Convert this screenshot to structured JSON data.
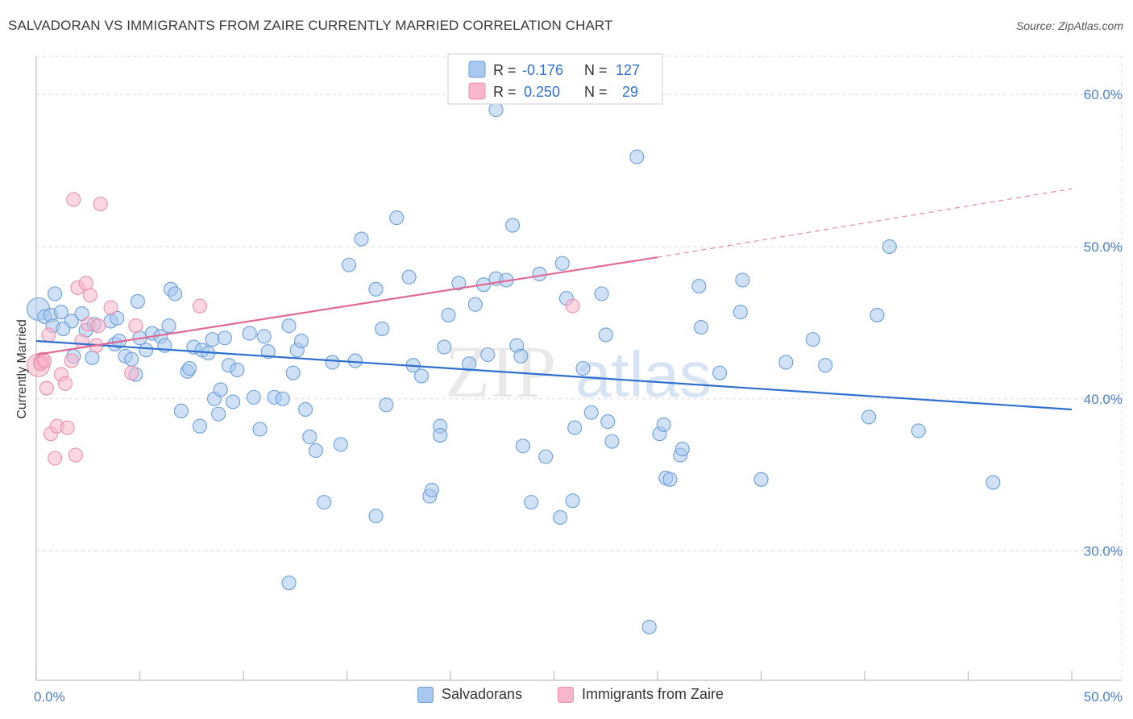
{
  "title": "SALVADORAN VS IMMIGRANTS FROM ZAIRE CURRENTLY MARRIED CORRELATION CHART",
  "source": "Source: ZipAtlas.com",
  "watermark": {
    "zip": "ZIP",
    "atlas": "atlas"
  },
  "colors": {
    "blue_fill": "#a9c8ef",
    "blue_stroke": "#6c9fd8",
    "blue_line": "#2f6fcf",
    "pink_fill": "#f7b6cb",
    "pink_stroke": "#e890ad",
    "pink_line": "#e06a96",
    "tick_text": "#4a7cc7",
    "grid": "#d8d8d8"
  },
  "legend_top": [
    {
      "r_label": "R =",
      "r_value": "-0.176",
      "n_label": "N =",
      "n_value": "127"
    },
    {
      "r_label": "R =",
      "r_value": "0.250",
      "n_label": "N =",
      "n_value": "29"
    }
  ],
  "legend_bottom": [
    "Salvadorans",
    "Immigrants from Zaire"
  ],
  "chart_data": {
    "type": "scatter",
    "xlabel": "",
    "ylabel": "Currently Married",
    "xlim": [
      0,
      50
    ],
    "ylim": [
      21.5,
      62.5
    ],
    "x_tick_labels": [
      "0.0%",
      "50.0%"
    ],
    "y_ticks": [
      30,
      40,
      50,
      60
    ],
    "y_tick_labels": [
      "30.0%",
      "40.0%",
      "50.0%",
      "60.0%"
    ],
    "grid": true,
    "series": [
      {
        "name": "Salvadorans",
        "color": "#a9c8ef",
        "trend": {
          "x": [
            0,
            50
          ],
          "y": [
            43.8,
            39.3
          ],
          "dashed_extension": false
        },
        "points": [
          [
            0.1,
            45.9
          ],
          [
            0.4,
            45.4
          ],
          [
            0.7,
            45.5
          ],
          [
            0.9,
            46.9
          ],
          [
            1.2,
            45.7
          ],
          [
            1.7,
            45.1
          ],
          [
            0.8,
            44.8
          ],
          [
            1.3,
            44.6
          ],
          [
            2.2,
            45.6
          ],
          [
            2.4,
            44.5
          ],
          [
            2.8,
            44.9
          ],
          [
            3.6,
            45.1
          ],
          [
            3.9,
            45.3
          ],
          [
            4.9,
            46.4
          ],
          [
            1.8,
            42.8
          ],
          [
            2.7,
            42.7
          ],
          [
            3.8,
            43.6
          ],
          [
            4.0,
            43.8
          ],
          [
            4.3,
            42.8
          ],
          [
            4.6,
            42.6
          ],
          [
            4.8,
            41.6
          ],
          [
            5.0,
            44.0
          ],
          [
            5.3,
            43.2
          ],
          [
            5.6,
            44.3
          ],
          [
            6.0,
            44.1
          ],
          [
            6.2,
            43.5
          ],
          [
            6.4,
            44.8
          ],
          [
            6.5,
            47.2
          ],
          [
            6.7,
            46.9
          ],
          [
            7.3,
            41.8
          ],
          [
            7.4,
            42.0
          ],
          [
            7.6,
            43.4
          ],
          [
            8.0,
            43.2
          ],
          [
            8.3,
            43.0
          ],
          [
            8.5,
            43.9
          ],
          [
            7.0,
            39.2
          ],
          [
            7.9,
            38.2
          ],
          [
            8.6,
            40.0
          ],
          [
            8.8,
            39.0
          ],
          [
            8.9,
            40.6
          ],
          [
            9.3,
            42.2
          ],
          [
            9.1,
            44.0
          ],
          [
            9.5,
            39.8
          ],
          [
            9.7,
            41.9
          ],
          [
            10.3,
            44.3
          ],
          [
            10.5,
            40.1
          ],
          [
            10.8,
            38.0
          ],
          [
            11.0,
            44.1
          ],
          [
            11.2,
            43.1
          ],
          [
            11.5,
            40.1
          ],
          [
            11.9,
            40.0
          ],
          [
            12.2,
            44.8
          ],
          [
            12.4,
            41.7
          ],
          [
            12.6,
            43.2
          ],
          [
            12.8,
            43.8
          ],
          [
            13.0,
            39.3
          ],
          [
            13.2,
            37.5
          ],
          [
            13.5,
            36.6
          ],
          [
            12.2,
            27.9
          ],
          [
            14.3,
            42.4
          ],
          [
            14.7,
            37.0
          ],
          [
            13.9,
            33.2
          ],
          [
            15.4,
            42.5
          ],
          [
            15.7,
            50.5
          ],
          [
            15.1,
            48.8
          ],
          [
            16.4,
            47.2
          ],
          [
            16.7,
            44.6
          ],
          [
            16.9,
            39.6
          ],
          [
            16.4,
            32.3
          ],
          [
            17.4,
            51.9
          ],
          [
            18.0,
            48.0
          ],
          [
            18.2,
            42.2
          ],
          [
            18.6,
            41.5
          ],
          [
            19.0,
            33.6
          ],
          [
            19.1,
            34.0
          ],
          [
            19.5,
            38.2
          ],
          [
            19.5,
            37.6
          ],
          [
            19.7,
            43.4
          ],
          [
            19.9,
            45.5
          ],
          [
            20.4,
            47.6
          ],
          [
            20.9,
            42.3
          ],
          [
            21.2,
            46.2
          ],
          [
            21.6,
            47.5
          ],
          [
            21.8,
            42.9
          ],
          [
            22.2,
            47.9
          ],
          [
            22.7,
            47.8
          ],
          [
            22.2,
            59.0
          ],
          [
            23.0,
            51.4
          ],
          [
            23.2,
            43.5
          ],
          [
            23.4,
            42.8
          ],
          [
            23.5,
            36.9
          ],
          [
            23.9,
            33.2
          ],
          [
            24.6,
            36.2
          ],
          [
            24.3,
            48.2
          ],
          [
            25.4,
            48.9
          ],
          [
            25.3,
            32.2
          ],
          [
            25.6,
            46.6
          ],
          [
            26.0,
            38.1
          ],
          [
            26.4,
            42.0
          ],
          [
            26.8,
            39.1
          ],
          [
            27.3,
            46.9
          ],
          [
            27.5,
            44.2
          ],
          [
            27.6,
            38.5
          ],
          [
            27.8,
            37.2
          ],
          [
            29.0,
            55.9
          ],
          [
            30.1,
            37.7
          ],
          [
            30.3,
            38.3
          ],
          [
            30.4,
            34.8
          ],
          [
            30.6,
            34.7
          ],
          [
            31.1,
            36.3
          ],
          [
            31.2,
            36.7
          ],
          [
            32.0,
            47.4
          ],
          [
            32.1,
            44.7
          ],
          [
            33.0,
            41.7
          ],
          [
            34.0,
            45.7
          ],
          [
            34.1,
            47.8
          ],
          [
            35.0,
            34.7
          ],
          [
            36.2,
            42.4
          ],
          [
            37.5,
            43.9
          ],
          [
            38.1,
            42.2
          ],
          [
            40.2,
            38.8
          ],
          [
            40.6,
            45.5
          ],
          [
            41.2,
            50.0
          ],
          [
            42.6,
            37.9
          ],
          [
            46.2,
            34.5
          ],
          [
            25.9,
            33.3
          ],
          [
            29.6,
            25.0
          ]
        ]
      },
      {
        "name": "Immigrants from Zaire",
        "color": "#f7b6cb",
        "trend": {
          "x": [
            0,
            30
          ],
          "y": [
            42.9,
            49.3
          ],
          "dashed_extension": true,
          "dashed_to": [
            50,
            53.8
          ]
        },
        "points": [
          [
            0.1,
            42.2
          ],
          [
            0.2,
            42.4
          ],
          [
            0.3,
            42.6
          ],
          [
            0.5,
            40.7
          ],
          [
            0.6,
            44.2
          ],
          [
            0.7,
            37.7
          ],
          [
            0.9,
            36.1
          ],
          [
            1.0,
            38.2
          ],
          [
            1.2,
            41.6
          ],
          [
            1.4,
            41.0
          ],
          [
            1.5,
            38.1
          ],
          [
            1.7,
            42.5
          ],
          [
            1.8,
            53.1
          ],
          [
            1.9,
            36.3
          ],
          [
            2.0,
            47.3
          ],
          [
            2.2,
            43.8
          ],
          [
            2.4,
            47.6
          ],
          [
            2.5,
            44.9
          ],
          [
            2.6,
            46.8
          ],
          [
            2.9,
            43.5
          ],
          [
            3.0,
            44.8
          ],
          [
            3.1,
            52.8
          ],
          [
            3.6,
            46.0
          ],
          [
            4.6,
            41.7
          ],
          [
            4.8,
            44.8
          ],
          [
            7.9,
            46.1
          ],
          [
            25.9,
            46.1
          ],
          [
            0.2,
            42.3
          ],
          [
            0.4,
            42.5
          ]
        ]
      }
    ]
  }
}
